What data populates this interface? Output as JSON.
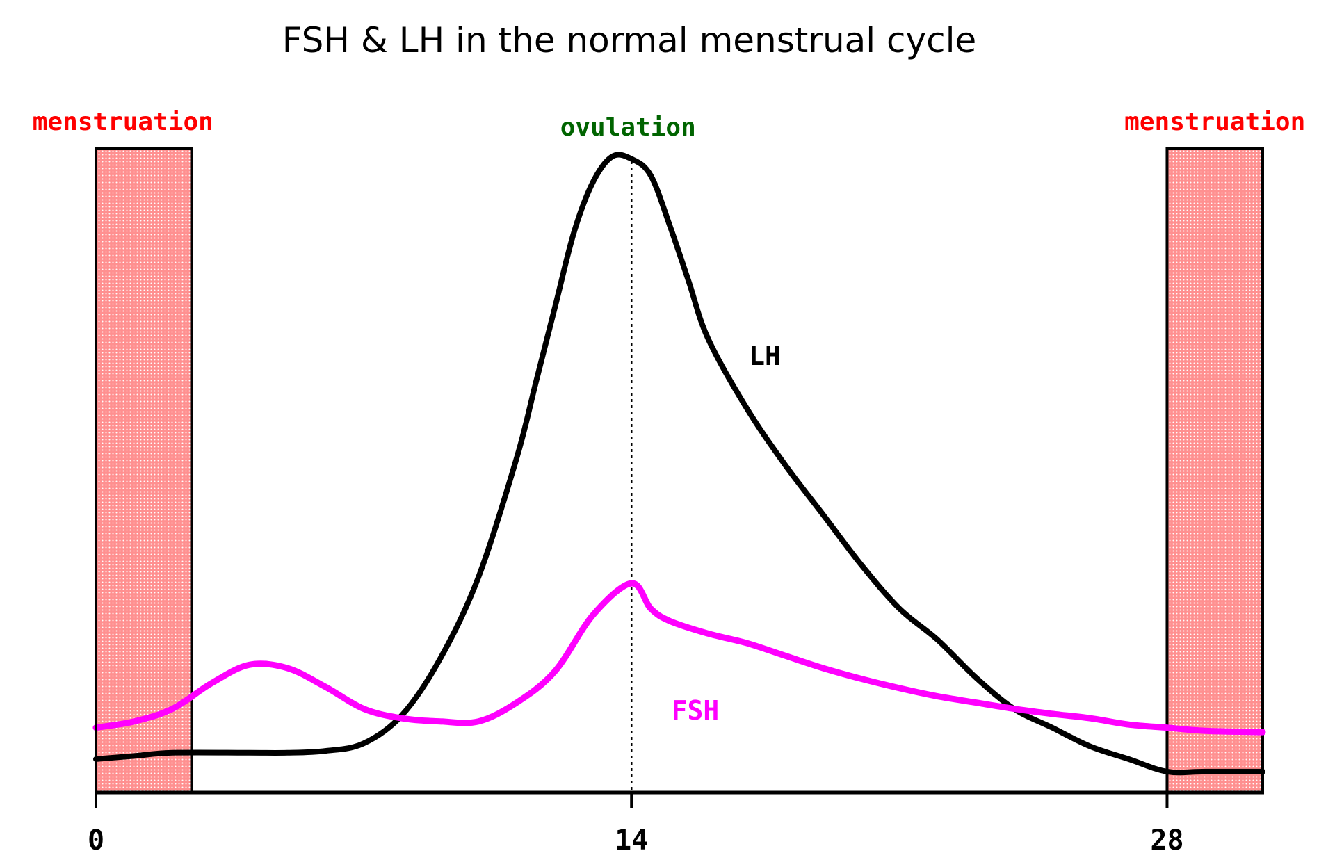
{
  "chart_data": {
    "type": "line",
    "title": "FSH & LH in the normal menstrual cycle",
    "xlabel": "",
    "ylabel": "",
    "xlim": [
      0,
      30.5
    ],
    "ylim": [
      0,
      100
    ],
    "x_ticks": [
      {
        "value": 0,
        "label": "0"
      },
      {
        "value": 14,
        "label": "14"
      },
      {
        "value": 28,
        "label": "28"
      }
    ],
    "grid": false,
    "legend": "none",
    "series": [
      {
        "name": "LH",
        "color": "#000000",
        "x": [
          0,
          1,
          2,
          4,
          5,
          6,
          7,
          8,
          9,
          10,
          11,
          11.5,
          12,
          12.5,
          13,
          13.5,
          14,
          14.5,
          15,
          15.5,
          16,
          17,
          18,
          19,
          20,
          21,
          22,
          23,
          24,
          25,
          26,
          27,
          28,
          29,
          30.5
        ],
        "y": [
          4,
          4.5,
          5,
          5,
          5,
          5.3,
          6.5,
          11,
          20,
          33,
          52,
          64,
          76,
          88,
          96,
          100,
          99.6,
          97,
          89,
          80,
          71,
          60,
          51,
          43,
          35,
          28,
          23,
          17,
          12,
          9,
          6,
          4,
          2,
          2,
          2
        ],
        "label_position": "right of peak"
      },
      {
        "name": "FSH",
        "color": "#ff00ff",
        "x": [
          0,
          1,
          2,
          3,
          4,
          5,
          6,
          7,
          8,
          9,
          10,
          11,
          12,
          13,
          14,
          14.5,
          15,
          16,
          17,
          18,
          19,
          20,
          21,
          22,
          23,
          24,
          25,
          26,
          27,
          28,
          29,
          30.5
        ],
        "y": [
          9,
          10,
          12,
          16,
          19,
          18.5,
          15.5,
          12,
          10.5,
          10,
          10,
          13,
          18,
          27,
          32,
          28,
          26,
          24,
          22.5,
          20.5,
          18.5,
          16.8,
          15.3,
          14,
          13,
          12,
          11.2,
          10.5,
          9.5,
          9,
          8.5,
          8.3
        ],
        "label_position": "below right of peak"
      }
    ],
    "annotations": [
      {
        "text": "menstruation",
        "color": "#ff0000",
        "band": [
          0,
          2.5
        ]
      },
      {
        "text": "menstruation",
        "color": "#ff0000",
        "band": [
          28,
          30.5
        ]
      },
      {
        "text": "ovulation",
        "color": "#006400",
        "x": 14,
        "style": "dotted vertical line"
      }
    ],
    "band_color": "#ff9090"
  }
}
